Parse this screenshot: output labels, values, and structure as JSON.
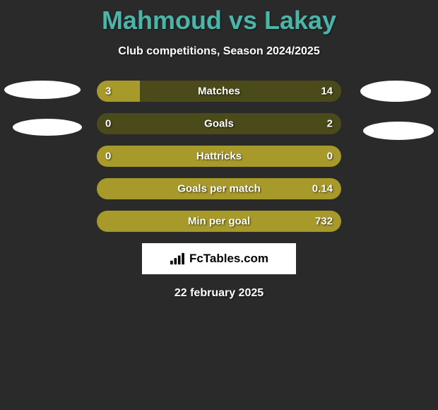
{
  "title": "Mahmoud vs Lakay",
  "subtitle": "Club competitions, Season 2024/2025",
  "date": "22 february 2025",
  "logo_text": "FcTables.com",
  "colors": {
    "background": "#2a2a2a",
    "title_color": "#4ab5a8",
    "text_color": "#ffffff",
    "bar_bg": "#4a4a1a",
    "bar_fill": "#a89a2a",
    "oval": "#ffffff"
  },
  "bars": [
    {
      "label": "Matches",
      "left": "3",
      "right": "14",
      "fill_pct": 17.6
    },
    {
      "label": "Goals",
      "left": "0",
      "right": "2",
      "fill_pct": 0
    },
    {
      "label": "Hattricks",
      "left": "0",
      "right": "0",
      "fill_pct": 100
    },
    {
      "label": "Goals per match",
      "left": "",
      "right": "0.14",
      "fill_pct": 100
    },
    {
      "label": "Min per goal",
      "left": "",
      "right": "732",
      "fill_pct": 100
    }
  ]
}
